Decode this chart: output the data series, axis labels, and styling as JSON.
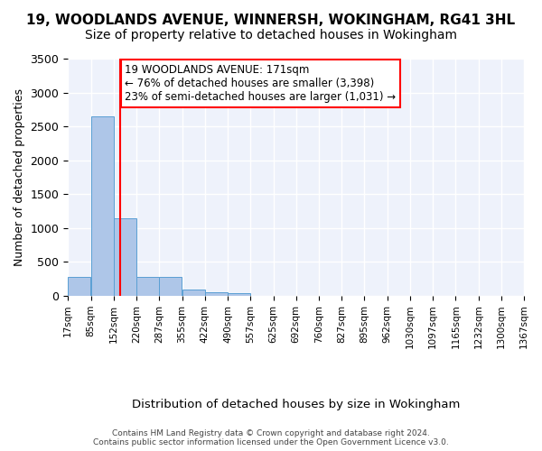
{
  "title": "19, WOODLANDS AVENUE, WINNERSH, WOKINGHAM, RG41 3HL",
  "subtitle": "Size of property relative to detached houses in Wokingham",
  "xlabel": "Distribution of detached houses by size in Wokingham",
  "ylabel": "Number of detached properties",
  "bar_color": "#aec6e8",
  "bar_edge_color": "#5a9fd4",
  "background_color": "#eef2fb",
  "grid_color": "#ffffff",
  "annotation_text": "19 WOODLANDS AVENUE: 171sqm\n← 76% of detached houses are smaller (3,398)\n23% of semi-detached houses are larger (1,031) →",
  "annotation_box_color": "white",
  "annotation_box_edge_color": "red",
  "property_line_x": 171,
  "property_line_color": "red",
  "bin_edges": [
    17,
    85,
    152,
    220,
    287,
    355,
    422,
    490,
    557,
    625,
    692,
    760,
    827,
    895,
    962,
    1030,
    1097,
    1165,
    1232,
    1300,
    1367
  ],
  "bar_heights": [
    275,
    2650,
    1140,
    285,
    285,
    95,
    55,
    35,
    0,
    0,
    0,
    0,
    0,
    0,
    0,
    0,
    0,
    0,
    0,
    0
  ],
  "tick_labels": [
    "17sqm",
    "85sqm",
    "152sqm",
    "220sqm",
    "287sqm",
    "355sqm",
    "422sqm",
    "490sqm",
    "557sqm",
    "625sqm",
    "692sqm",
    "760sqm",
    "827sqm",
    "895sqm",
    "962sqm",
    "1030sqm",
    "1097sqm",
    "1165sqm",
    "1232sqm",
    "1300sqm",
    "1367sqm"
  ],
  "ylim": [
    0,
    3500
  ],
  "yticks": [
    0,
    500,
    1000,
    1500,
    2000,
    2500,
    3000,
    3500
  ],
  "footer_text": "Contains HM Land Registry data © Crown copyright and database right 2024.\nContains public sector information licensed under the Open Government Licence v3.0.",
  "title_fontsize": 11,
  "subtitle_fontsize": 10
}
